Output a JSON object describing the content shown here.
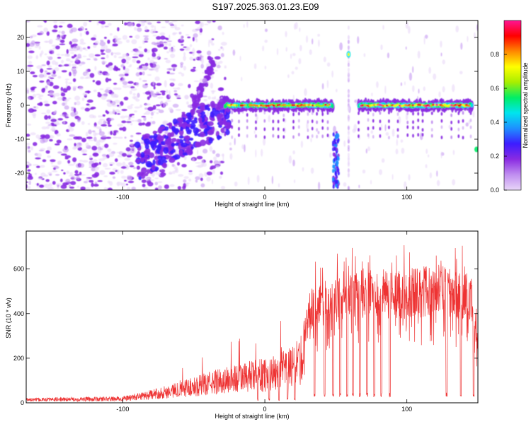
{
  "title": "S197.2025.363.01.23.E09",
  "colors": {
    "snr_line": "#ee3333",
    "rainbow": [
      "#e8d6f8",
      "#c08ef0",
      "#8a2be2",
      "#3c1cff",
      "#1e90ff",
      "#00e5ee",
      "#00ee66",
      "#a8ee00",
      "#ffff00",
      "#ff8800",
      "#ff0000",
      "#ff1493"
    ]
  },
  "chart_data": [
    {
      "type": "heatmap",
      "title": "S197.2025.363.01.23.E09",
      "xlabel": "Height of straight line (km)",
      "ylabel": "Frequency (Hz)",
      "xlim": [
        -168,
        150
      ],
      "ylim": [
        -25,
        25
      ],
      "x_ticks": [
        -100,
        0,
        100
      ],
      "y_ticks": [
        -20,
        -10,
        0,
        10,
        20
      ],
      "colorbar": {
        "label": "Normalized spectral amplitude",
        "range": [
          0.0,
          1.0
        ],
        "ticks": [
          "0.0",
          "0.2",
          "0.4",
          "0.6",
          "0.8"
        ]
      },
      "features": {
        "noise_region_x": [
          -168,
          -80
        ],
        "main_tone_freq_hz": 0,
        "tone_start_x": -30,
        "gap_x": [
          50,
          68
        ],
        "spike_x": 59,
        "spike_freq_hz": 15
      }
    },
    {
      "type": "line",
      "xlabel": "Height of straight line (km)",
      "ylabel": "SNR (10 * v/v)",
      "xlim": [
        -168,
        150
      ],
      "ylim": [
        0,
        770
      ],
      "x_ticks": [
        -100,
        0,
        100
      ],
      "y_ticks": [
        0,
        200,
        400,
        600
      ],
      "series_name": "SNR",
      "envelope": {
        "x": [
          -168,
          -100,
          -80,
          -50,
          -30,
          -10,
          10,
          25,
          30,
          60,
          100,
          120,
          145,
          150
        ],
        "y": [
          15,
          20,
          40,
          80,
          110,
          130,
          150,
          200,
          420,
          510,
          500,
          520,
          480,
          280
        ]
      },
      "dropout_x": [
        35,
        42,
        48,
        53,
        58,
        62,
        67,
        72,
        77,
        82,
        88,
        128,
        138,
        147
      ]
    }
  ]
}
